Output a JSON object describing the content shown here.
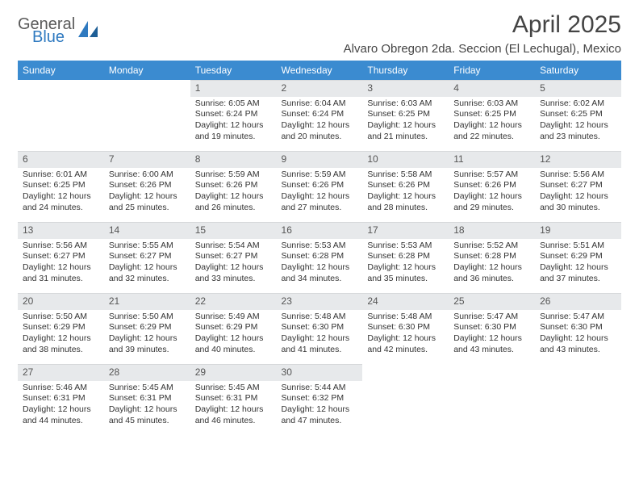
{
  "brand": {
    "line1": "General",
    "line2": "Blue"
  },
  "title": "April 2025",
  "location": "Alvaro Obregon 2da. Seccion (El Lechugal), Mexico",
  "colors": {
    "header_bg": "#3b8bd0",
    "header_fg": "#ffffff",
    "daynum_bg": "#e7e9eb",
    "brand_blue": "#2f7ac0",
    "text": "#333333"
  },
  "day_labels": [
    "Sunday",
    "Monday",
    "Tuesday",
    "Wednesday",
    "Thursday",
    "Friday",
    "Saturday"
  ],
  "weeks": [
    [
      null,
      null,
      {
        "n": "1",
        "sunrise": "6:05 AM",
        "sunset": "6:24 PM",
        "day": "12 hours and 19 minutes."
      },
      {
        "n": "2",
        "sunrise": "6:04 AM",
        "sunset": "6:24 PM",
        "day": "12 hours and 20 minutes."
      },
      {
        "n": "3",
        "sunrise": "6:03 AM",
        "sunset": "6:25 PM",
        "day": "12 hours and 21 minutes."
      },
      {
        "n": "4",
        "sunrise": "6:03 AM",
        "sunset": "6:25 PM",
        "day": "12 hours and 22 minutes."
      },
      {
        "n": "5",
        "sunrise": "6:02 AM",
        "sunset": "6:25 PM",
        "day": "12 hours and 23 minutes."
      }
    ],
    [
      {
        "n": "6",
        "sunrise": "6:01 AM",
        "sunset": "6:25 PM",
        "day": "12 hours and 24 minutes."
      },
      {
        "n": "7",
        "sunrise": "6:00 AM",
        "sunset": "6:26 PM",
        "day": "12 hours and 25 minutes."
      },
      {
        "n": "8",
        "sunrise": "5:59 AM",
        "sunset": "6:26 PM",
        "day": "12 hours and 26 minutes."
      },
      {
        "n": "9",
        "sunrise": "5:59 AM",
        "sunset": "6:26 PM",
        "day": "12 hours and 27 minutes."
      },
      {
        "n": "10",
        "sunrise": "5:58 AM",
        "sunset": "6:26 PM",
        "day": "12 hours and 28 minutes."
      },
      {
        "n": "11",
        "sunrise": "5:57 AM",
        "sunset": "6:26 PM",
        "day": "12 hours and 29 minutes."
      },
      {
        "n": "12",
        "sunrise": "5:56 AM",
        "sunset": "6:27 PM",
        "day": "12 hours and 30 minutes."
      }
    ],
    [
      {
        "n": "13",
        "sunrise": "5:56 AM",
        "sunset": "6:27 PM",
        "day": "12 hours and 31 minutes."
      },
      {
        "n": "14",
        "sunrise": "5:55 AM",
        "sunset": "6:27 PM",
        "day": "12 hours and 32 minutes."
      },
      {
        "n": "15",
        "sunrise": "5:54 AM",
        "sunset": "6:27 PM",
        "day": "12 hours and 33 minutes."
      },
      {
        "n": "16",
        "sunrise": "5:53 AM",
        "sunset": "6:28 PM",
        "day": "12 hours and 34 minutes."
      },
      {
        "n": "17",
        "sunrise": "5:53 AM",
        "sunset": "6:28 PM",
        "day": "12 hours and 35 minutes."
      },
      {
        "n": "18",
        "sunrise": "5:52 AM",
        "sunset": "6:28 PM",
        "day": "12 hours and 36 minutes."
      },
      {
        "n": "19",
        "sunrise": "5:51 AM",
        "sunset": "6:29 PM",
        "day": "12 hours and 37 minutes."
      }
    ],
    [
      {
        "n": "20",
        "sunrise": "5:50 AM",
        "sunset": "6:29 PM",
        "day": "12 hours and 38 minutes."
      },
      {
        "n": "21",
        "sunrise": "5:50 AM",
        "sunset": "6:29 PM",
        "day": "12 hours and 39 minutes."
      },
      {
        "n": "22",
        "sunrise": "5:49 AM",
        "sunset": "6:29 PM",
        "day": "12 hours and 40 minutes."
      },
      {
        "n": "23",
        "sunrise": "5:48 AM",
        "sunset": "6:30 PM",
        "day": "12 hours and 41 minutes."
      },
      {
        "n": "24",
        "sunrise": "5:48 AM",
        "sunset": "6:30 PM",
        "day": "12 hours and 42 minutes."
      },
      {
        "n": "25",
        "sunrise": "5:47 AM",
        "sunset": "6:30 PM",
        "day": "12 hours and 43 minutes."
      },
      {
        "n": "26",
        "sunrise": "5:47 AM",
        "sunset": "6:30 PM",
        "day": "12 hours and 43 minutes."
      }
    ],
    [
      {
        "n": "27",
        "sunrise": "5:46 AM",
        "sunset": "6:31 PM",
        "day": "12 hours and 44 minutes."
      },
      {
        "n": "28",
        "sunrise": "5:45 AM",
        "sunset": "6:31 PM",
        "day": "12 hours and 45 minutes."
      },
      {
        "n": "29",
        "sunrise": "5:45 AM",
        "sunset": "6:31 PM",
        "day": "12 hours and 46 minutes."
      },
      {
        "n": "30",
        "sunrise": "5:44 AM",
        "sunset": "6:32 PM",
        "day": "12 hours and 47 minutes."
      },
      null,
      null,
      null
    ]
  ],
  "labels": {
    "sunrise": "Sunrise:",
    "sunset": "Sunset:",
    "daylight": "Daylight:"
  }
}
